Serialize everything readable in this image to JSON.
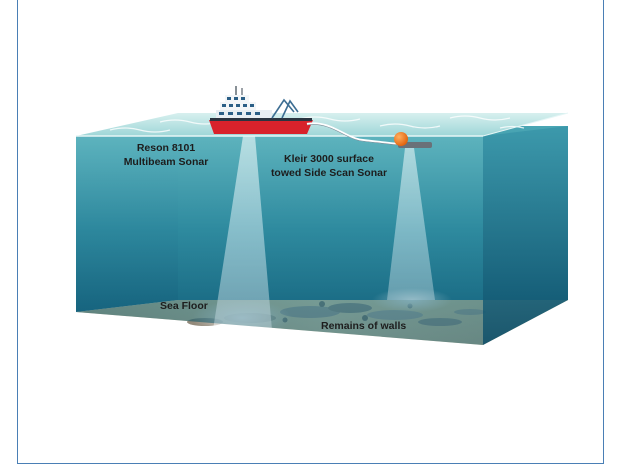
{
  "labels": {
    "multibeam_line1": "Reson 8101",
    "multibeam_line2": "Multibeam Sonar",
    "sidescan_line1": "Kleir 3000 surface",
    "sidescan_line2": "towed Side Scan Sonar",
    "sea_floor": "Sea Floor",
    "remains": "Remains of walls"
  },
  "colors": {
    "frame_border": "#4a7fb5",
    "water_deep": "#0e5a78",
    "water_light": "#8fd0d6",
    "ship_hull": "#d8222b",
    "buoy": "#f07a12",
    "sand": "#d9c49a"
  }
}
